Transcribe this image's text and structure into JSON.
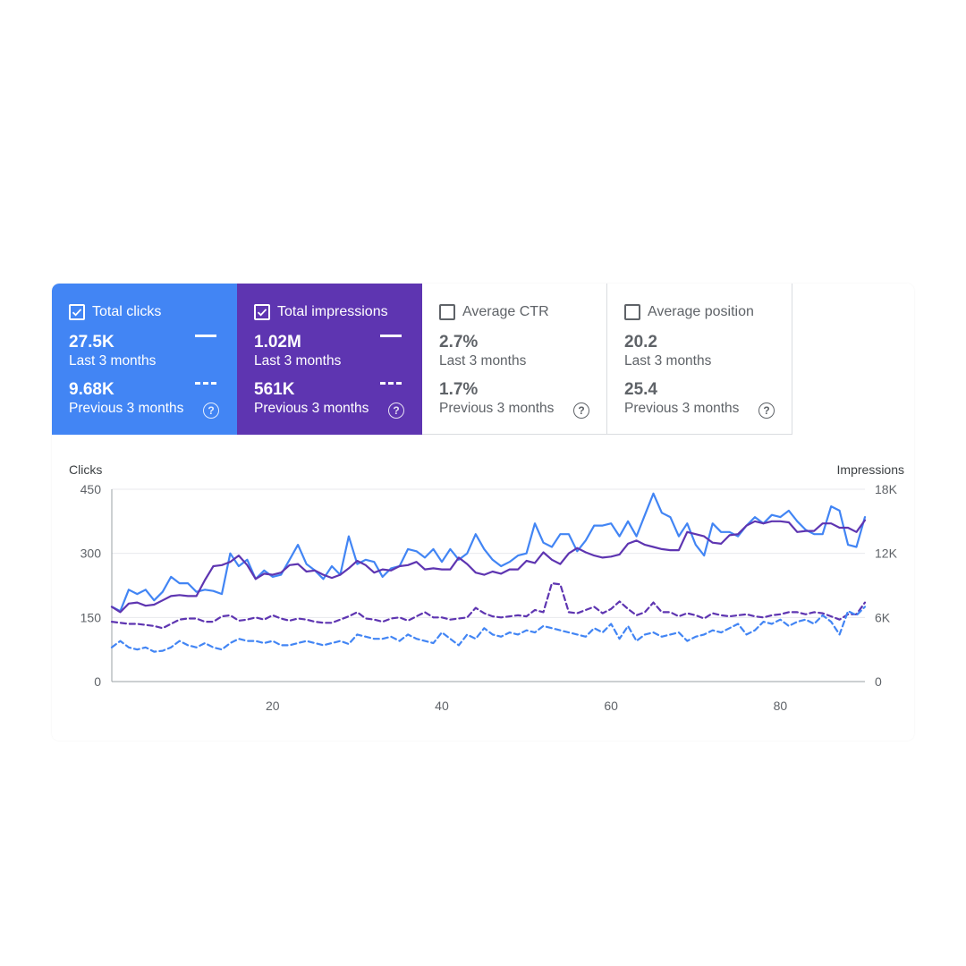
{
  "cards": [
    {
      "label": "Total clicks",
      "checked": true,
      "value": "27.5K",
      "sub1": "Last 3 months",
      "value2": "9.68K",
      "sub2": "Previous 3 months",
      "color": "#4285f4"
    },
    {
      "label": "Total impressions",
      "checked": true,
      "value": "1.02M",
      "sub1": "Last 3 months",
      "value2": "561K",
      "sub2": "Previous 3 months",
      "color": "#5e35b1"
    },
    {
      "label": "Average CTR",
      "checked": false,
      "value": "2.7%",
      "sub1": "Last 3 months",
      "value2": "1.7%",
      "sub2": "Previous 3 months"
    },
    {
      "label": "Average position",
      "checked": false,
      "value": "20.2",
      "sub1": "Last 3 months",
      "value2": "25.4",
      "sub2": "Previous 3 months"
    }
  ],
  "help_glyph": "?",
  "icons": {
    "checkbox": "checkbox-icon",
    "help": "help-circle-icon"
  },
  "chart_data": {
    "type": "line",
    "ylabel": "Clicks",
    "y2label": "Impressions",
    "ylim": [
      0,
      450
    ],
    "y2lim": [
      0,
      18000
    ],
    "yticks": [
      "0",
      "150",
      "300",
      "450"
    ],
    "y2ticks": [
      "0",
      "6K",
      "12K",
      "18K"
    ],
    "xticks": [
      "20",
      "40",
      "60",
      "80"
    ],
    "xlim": [
      1,
      90
    ],
    "grid": true,
    "series": [
      {
        "axis": "left",
        "style": "solid",
        "color": "#4285f4",
        "x_start": 1,
        "values": [
          175,
          165,
          215,
          205,
          215,
          190,
          210,
          245,
          230,
          230,
          210,
          215,
          212,
          205,
          300,
          270,
          285,
          240,
          260,
          245,
          250,
          285,
          320,
          275,
          260,
          240,
          270,
          250,
          340,
          275,
          285,
          280,
          245,
          265,
          270,
          310,
          305,
          290,
          310,
          280,
          310,
          285,
          300,
          345,
          310,
          285,
          270,
          280,
          295,
          300,
          370,
          325,
          315,
          345,
          345,
          305,
          330,
          365,
          365,
          370,
          340,
          375,
          340,
          390,
          440,
          395,
          385,
          340,
          370,
          320,
          295,
          370,
          350,
          350,
          340,
          365,
          385,
          370,
          390,
          385,
          400,
          375,
          355,
          345,
          345,
          410,
          400,
          320,
          315,
          385
        ]
      },
      {
        "axis": "right",
        "style": "solid",
        "color": "#5e35b1",
        "x_start": 1,
        "values": [
          7000,
          6500,
          7300,
          7400,
          7100,
          7200,
          7600,
          8000,
          8100,
          8000,
          8000,
          9500,
          10800,
          10900,
          11200,
          11800,
          10900,
          9600,
          10100,
          10000,
          10200,
          10900,
          11000,
          10300,
          10400,
          10000,
          9700,
          10000,
          10600,
          11300,
          10900,
          10200,
          10500,
          10400,
          10800,
          10900,
          11200,
          10500,
          10600,
          10500,
          10500,
          11600,
          11000,
          10200,
          10000,
          10300,
          10100,
          10500,
          10500,
          11300,
          11100,
          12100,
          11400,
          11000,
          12000,
          12500,
          12100,
          11800,
          11600,
          11700,
          11900,
          12900,
          13200,
          12800,
          12600,
          12400,
          12300,
          12300,
          14000,
          13800,
          13600,
          13000,
          12900,
          13700,
          13800,
          14600,
          15000,
          14800,
          15000,
          15000,
          14900,
          14000,
          14100,
          14100,
          14800,
          14800,
          14400,
          14400,
          14000,
          15100
        ]
      },
      {
        "axis": "right",
        "style": "dashed",
        "color": "#5e35b1",
        "x_start": 1,
        "values": [
          5600,
          5500,
          5400,
          5400,
          5300,
          5200,
          5000,
          5400,
          5800,
          5900,
          5900,
          5600,
          5600,
          6100,
          6200,
          5700,
          5800,
          6000,
          5800,
          6200,
          5900,
          5700,
          5900,
          5800,
          5600,
          5500,
          5500,
          5800,
          6100,
          6500,
          5900,
          5800,
          5600,
          5900,
          6000,
          5700,
          6100,
          6500,
          6000,
          6000,
          5800,
          5900,
          6000,
          6900,
          6400,
          6100,
          6000,
          6100,
          6200,
          6100,
          6700,
          6500,
          9200,
          9100,
          6500,
          6400,
          6700,
          7000,
          6400,
          6800,
          7500,
          6800,
          6200,
          6500,
          7400,
          6500,
          6500,
          6100,
          6400,
          6200,
          5900,
          6400,
          6200,
          6100,
          6200,
          6300,
          6100,
          6000,
          6200,
          6300,
          6500,
          6500,
          6300,
          6500,
          6400,
          6100,
          5800,
          6300,
          6300,
          7400
        ]
      },
      {
        "axis": "left",
        "style": "dashed",
        "color": "#4285f4",
        "x_start": 1,
        "values": [
          80,
          95,
          80,
          75,
          80,
          70,
          72,
          80,
          95,
          85,
          80,
          90,
          80,
          75,
          90,
          100,
          95,
          95,
          90,
          95,
          85,
          85,
          90,
          95,
          90,
          85,
          90,
          95,
          88,
          110,
          105,
          100,
          100,
          105,
          95,
          110,
          100,
          95,
          90,
          115,
          100,
          85,
          110,
          100,
          125,
          110,
          105,
          115,
          110,
          120,
          115,
          130,
          125,
          120,
          115,
          110,
          105,
          125,
          115,
          135,
          100,
          130,
          95,
          110,
          115,
          105,
          110,
          115,
          95,
          105,
          110,
          120,
          115,
          125,
          135,
          110,
          120,
          140,
          135,
          145,
          130,
          140,
          145,
          135,
          155,
          140,
          110,
          165,
          155,
          175
        ]
      }
    ]
  }
}
